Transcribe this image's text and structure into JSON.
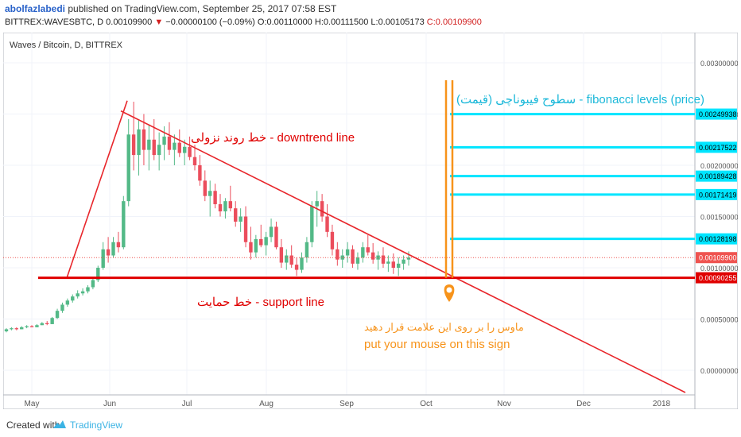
{
  "header": {
    "author": "abolfazlabedi",
    "published_text": " published on TradingView.com, September 25, 2017 07:58 EST",
    "symbol": "BITTREX:WAVESBTC, D",
    "last": "0.00109900",
    "arrow": "▼",
    "change": "−0.00000100 (−0.09%)",
    "ohlc_o": "O:0.00110000",
    "ohlc_h": "H:0.00111500",
    "ohlc_l": "L:0.00105173",
    "ohlc_c": "C:0.00109900"
  },
  "footer": {
    "created": "Created with",
    "brand": "TradingView"
  },
  "chart_data": {
    "type": "candlestick",
    "title": "Waves / Bitcoin, D, BITTREX",
    "x_ticks": [
      "May",
      "Jun",
      "Jul",
      "Aug",
      "Sep",
      "Oct",
      "Nov",
      "Dec",
      "2018"
    ],
    "y_ticks": [
      "0.00300000",
      "0.00250000",
      "0.00200000",
      "0.00150000",
      "0.00100000",
      "0.00050000",
      "0.00000000"
    ],
    "ylim": [
      -0.0002,
      0.0032
    ],
    "price_labels": [
      {
        "value": 0.00249938,
        "text": "0.00249938",
        "color": "#00e5ff",
        "text_color": "#000000"
      },
      {
        "value": 0.00217522,
        "text": "0.00217522",
        "color": "#00e5ff",
        "text_color": "#000000"
      },
      {
        "value": 0.00189428,
        "text": "0.00189428",
        "color": "#00e5ff",
        "text_color": "#000000"
      },
      {
        "value": 0.00171419,
        "text": "0.00171419",
        "color": "#00e5ff",
        "text_color": "#000000"
      },
      {
        "value": 0.00128198,
        "text": "0.00128198",
        "color": "#00e5ff",
        "text_color": "#000000"
      },
      {
        "value": 0.001099,
        "text": "0.00109900",
        "color": "#ef5350",
        "text_color": "#ffffff"
      },
      {
        "value": 0.00090255,
        "text": "0.00090255",
        "color": "#e00000",
        "text_color": "#ffffff"
      }
    ],
    "fib_levels": [
      0.00249938,
      0.00217522,
      0.00189428,
      0.00171419,
      0.00128198
    ],
    "support": 0.00090255,
    "last_price": 0.001099,
    "candles_sample": [
      [
        0.00038,
        0.00041,
        0.00037,
        0.0004
      ],
      [
        0.0004,
        0.00042,
        0.00039,
        0.00041
      ],
      [
        0.00041,
        0.00042,
        0.00039,
        0.0004
      ],
      [
        0.0004,
        0.00043,
        0.0004,
        0.00042
      ],
      [
        0.00042,
        0.00044,
        0.00041,
        0.00043
      ],
      [
        0.00043,
        0.00044,
        0.00042,
        0.00042
      ],
      [
        0.00042,
        0.00045,
        0.00042,
        0.00044
      ],
      [
        0.00044,
        0.00047,
        0.00044,
        0.00046
      ],
      [
        0.00046,
        0.00048,
        0.00044,
        0.00045
      ],
      [
        0.00045,
        0.00052,
        0.00045,
        0.00051
      ],
      [
        0.00051,
        0.0006,
        0.0005,
        0.00058
      ],
      [
        0.00058,
        0.00066,
        0.00056,
        0.00064
      ],
      [
        0.00064,
        0.0007,
        0.00062,
        0.00068
      ],
      [
        0.00068,
        0.00074,
        0.00066,
        0.00072
      ],
      [
        0.00072,
        0.00078,
        0.0007,
        0.00075
      ],
      [
        0.00075,
        0.0008,
        0.00073,
        0.00077
      ],
      [
        0.00077,
        0.00083,
        0.00075,
        0.00081
      ],
      [
        0.00081,
        0.0009,
        0.00079,
        0.00088
      ],
      [
        0.00088,
        0.00102,
        0.00086,
        0.001
      ],
      [
        0.001,
        0.00125,
        0.00098,
        0.00118
      ],
      [
        0.00118,
        0.0013,
        0.00105,
        0.00112
      ],
      [
        0.00112,
        0.0013,
        0.0011,
        0.00125
      ],
      [
        0.00125,
        0.00135,
        0.00115,
        0.0012
      ],
      [
        0.0012,
        0.0017,
        0.00118,
        0.00165
      ],
      [
        0.00165,
        0.00245,
        0.0016,
        0.0023
      ],
      [
        0.0023,
        0.00262,
        0.00195,
        0.0021
      ],
      [
        0.0021,
        0.00245,
        0.0019,
        0.00235
      ],
      [
        0.00235,
        0.0025,
        0.002,
        0.00215
      ],
      [
        0.00215,
        0.0024,
        0.00195,
        0.00225
      ],
      [
        0.00225,
        0.00245,
        0.00205,
        0.0021
      ],
      [
        0.0021,
        0.00232,
        0.00195,
        0.0022
      ],
      [
        0.0022,
        0.00238,
        0.00205,
        0.00228
      ],
      [
        0.00228,
        0.00242,
        0.0021,
        0.00215
      ],
      [
        0.00215,
        0.0023,
        0.002,
        0.00222
      ],
      [
        0.00222,
        0.00235,
        0.00208,
        0.00212
      ],
      [
        0.00212,
        0.00225,
        0.002,
        0.00218
      ],
      [
        0.00218,
        0.00228,
        0.00205,
        0.00208
      ],
      [
        0.00208,
        0.0022,
        0.00195,
        0.002
      ],
      [
        0.002,
        0.0021,
        0.0018,
        0.00185
      ],
      [
        0.00185,
        0.00195,
        0.00165,
        0.0017
      ],
      [
        0.0017,
        0.00185,
        0.0015,
        0.00175
      ],
      [
        0.00175,
        0.00182,
        0.00158,
        0.00162
      ],
      [
        0.00162,
        0.00172,
        0.0015,
        0.00155
      ],
      [
        0.00155,
        0.00168,
        0.00148,
        0.00165
      ],
      [
        0.00165,
        0.0018,
        0.00155,
        0.00158
      ],
      [
        0.00158,
        0.00165,
        0.0014,
        0.00145
      ],
      [
        0.00145,
        0.00158,
        0.00135,
        0.0015
      ],
      [
        0.0015,
        0.0016,
        0.0012,
        0.00125
      ],
      [
        0.00125,
        0.0014,
        0.00108,
        0.00115
      ],
      [
        0.00115,
        0.00132,
        0.0011,
        0.00128
      ],
      [
        0.00128,
        0.00142,
        0.0012,
        0.00122
      ],
      [
        0.00122,
        0.00135,
        0.00112,
        0.0013
      ],
      [
        0.0013,
        0.00148,
        0.00125,
        0.0014
      ],
      [
        0.0014,
        0.00145,
        0.00118,
        0.0012
      ],
      [
        0.0012,
        0.00128,
        0.001,
        0.00105
      ],
      [
        0.00105,
        0.00118,
        0.00098,
        0.00112
      ],
      [
        0.00112,
        0.00122,
        0.001,
        0.00103
      ],
      [
        0.00103,
        0.0011,
        0.00092,
        0.00098
      ],
      [
        0.00098,
        0.00115,
        0.00095,
        0.0011
      ],
      [
        0.0011,
        0.0013,
        0.00105,
        0.00125
      ],
      [
        0.00125,
        0.00165,
        0.0012,
        0.0016
      ],
      [
        0.0016,
        0.00175,
        0.0014,
        0.00165
      ],
      [
        0.00165,
        0.00172,
        0.00145,
        0.0015
      ],
      [
        0.0015,
        0.00162,
        0.0013,
        0.00135
      ],
      [
        0.00135,
        0.00142,
        0.00112,
        0.00118
      ],
      [
        0.00118,
        0.00125,
        0.00102,
        0.00108
      ],
      [
        0.00108,
        0.00118,
        0.001,
        0.00112
      ],
      [
        0.00112,
        0.00125,
        0.00105,
        0.00118
      ],
      [
        0.00118,
        0.00122,
        0.001,
        0.00104
      ],
      [
        0.00104,
        0.00115,
        0.00098,
        0.0011
      ],
      [
        0.0011,
        0.00125,
        0.00105,
        0.0012
      ],
      [
        0.0012,
        0.00132,
        0.00112,
        0.00115
      ],
      [
        0.00115,
        0.00124,
        0.00104,
        0.00108
      ],
      [
        0.00108,
        0.00116,
        0.00098,
        0.00112
      ],
      [
        0.00112,
        0.0012,
        0.001,
        0.00104
      ],
      [
        0.00104,
        0.00112,
        0.00096,
        0.00106
      ],
      [
        0.00106,
        0.00114,
        0.00094,
        0.001
      ],
      [
        0.001,
        0.0011,
        0.00092,
        0.00104
      ],
      [
        0.00104,
        0.00112,
        0.00098,
        0.00108
      ],
      [
        0.00108,
        0.00116,
        0.00102,
        0.0011
      ]
    ]
  },
  "annotations": {
    "downtrend": "خط روند نزولی - downtrend line",
    "support": "خط حمایت - support line",
    "fibonacci": "سطوح فیبوناچی (قیمت) - fibonacci levels (price)",
    "mouse_fa": "ماوس را بر روی این علامت قرار دهید",
    "mouse_en": "put your mouse on this sign"
  },
  "colors": {
    "up": "#53b987",
    "down": "#eb4d5c",
    "trend": "#e8262b",
    "fib": "#00e5ff",
    "marker": "#f7931a",
    "grid": "#f0f3fa"
  }
}
